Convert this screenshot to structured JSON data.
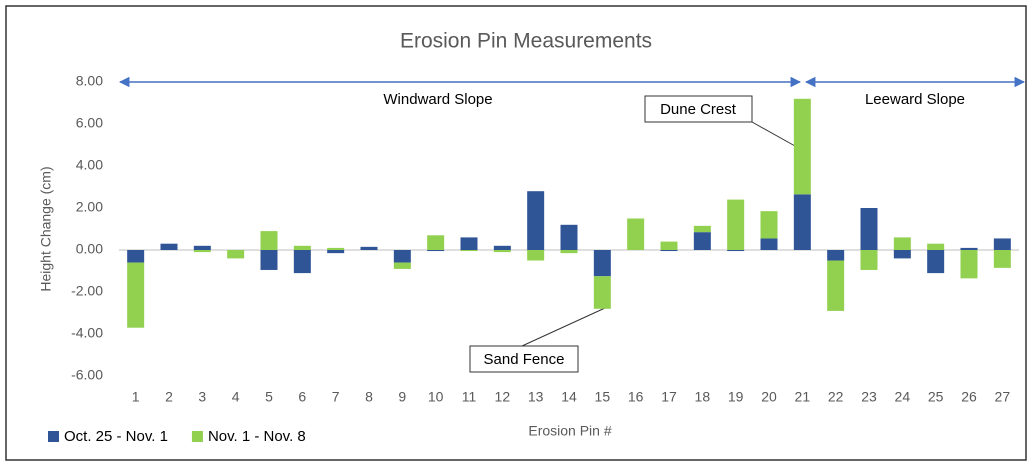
{
  "chart_data": {
    "type": "stacked_bar",
    "title": "Erosion Pin Measurements",
    "x_label": "Erosion Pin #",
    "y_label": "Height Change (cm)",
    "annotations": [
      "Windward Slope",
      "Leeward Slope",
      "Dune Crest",
      "Sand Fence"
    ],
    "categories": [
      "1",
      "2",
      "3",
      "4",
      "5",
      "6",
      "7",
      "8",
      "9",
      "10",
      "11",
      "12",
      "13",
      "14",
      "15",
      "16",
      "17",
      "18",
      "19",
      "20",
      "21",
      "22",
      "23",
      "24",
      "25",
      "26",
      "27"
    ],
    "series": [
      {
        "name": "Oct. 25 - Nov. 1",
        "color": "#2f5597",
        "values": [
          -0.6,
          0.3,
          0.2,
          0,
          -0.95,
          -1.1,
          -0.15,
          0.15,
          -0.6,
          -0.05,
          0.6,
          0.2,
          2.8,
          1.2,
          -1.25,
          0,
          -0.05,
          0.85,
          -0.05,
          0.55,
          2.65,
          -0.5,
          2.0,
          -0.4,
          -1.1,
          0.1,
          0.55
        ]
      },
      {
        "name": "Nov. 1 - Nov. 8",
        "color": "#92d050",
        "values": [
          -3.1,
          0,
          -0.1,
          -0.4,
          0.9,
          0.2,
          0.1,
          0,
          -0.3,
          0.7,
          -0.05,
          -0.1,
          -0.5,
          -0.15,
          -1.55,
          1.5,
          0.4,
          0.3,
          2.4,
          1.3,
          4.55,
          -2.4,
          -0.95,
          0.6,
          0.3,
          -1.35,
          -0.85
        ]
      }
    ],
    "ylim": [
      -6,
      8
    ],
    "yticks": [
      {
        "value": -6,
        "label": "-6.00"
      },
      {
        "value": -4,
        "label": "-4.00"
      },
      {
        "value": -2,
        "label": "-2.00"
      },
      {
        "value": 0,
        "label": "0.00"
      },
      {
        "value": 2,
        "label": "2.00"
      },
      {
        "value": 4,
        "label": "4.00"
      },
      {
        "value": 6,
        "label": "6.00"
      },
      {
        "value": 8,
        "label": "8.00"
      }
    ],
    "grid": false,
    "legend": "bottom-left"
  }
}
